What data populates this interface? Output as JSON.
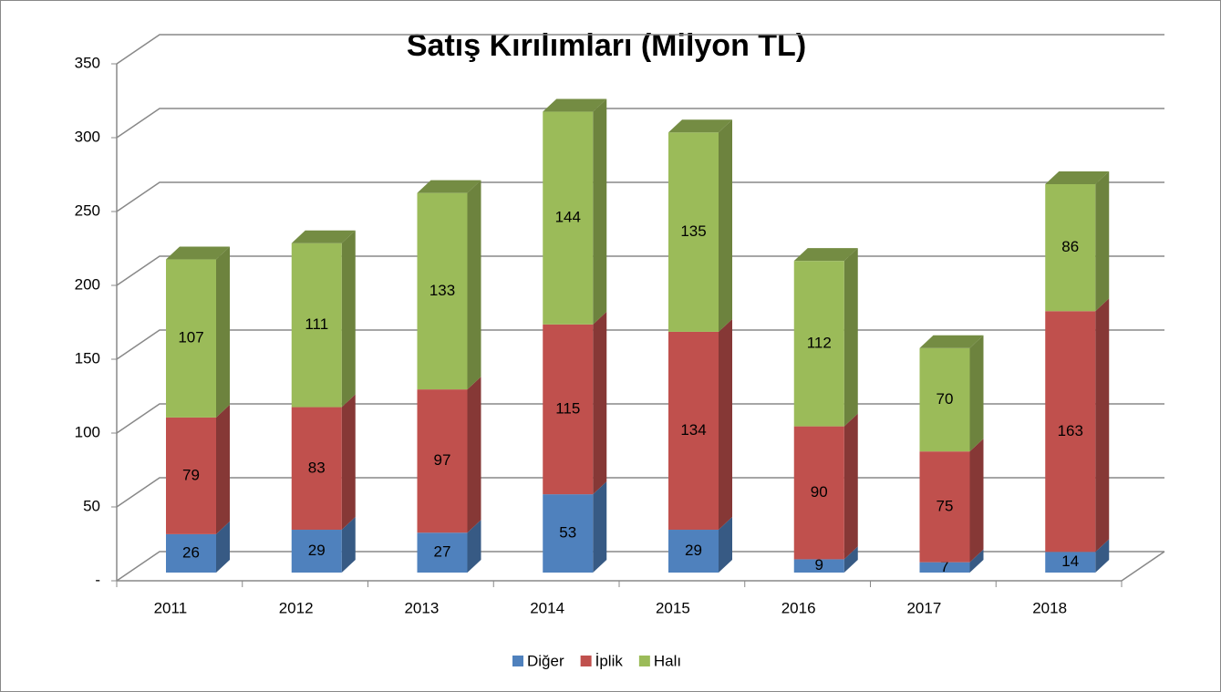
{
  "chart_data": {
    "type": "bar3d_stacked",
    "title": "Satış Kırılımları (Milyon TL)",
    "categories": [
      "2011",
      "2012",
      "2013",
      "2014",
      "2015",
      "2016",
      "2017",
      "2018"
    ],
    "series": [
      {
        "name": "Diğer",
        "color": "#4f81bd",
        "values": [
          26,
          29,
          27,
          53,
          29,
          9,
          7,
          14
        ]
      },
      {
        "name": "İplik",
        "color": "#c0504d",
        "values": [
          79,
          83,
          97,
          115,
          134,
          90,
          75,
          163
        ]
      },
      {
        "name": "Halı",
        "color": "#9bbb59",
        "values": [
          107,
          111,
          133,
          144,
          135,
          112,
          70,
          86
        ]
      }
    ],
    "ylim": [
      0,
      350
    ],
    "yticks": [
      {
        "value": 0,
        "label": "-"
      },
      50,
      100,
      150,
      200,
      250,
      300,
      350
    ],
    "grid": true,
    "legend": "bottom"
  }
}
